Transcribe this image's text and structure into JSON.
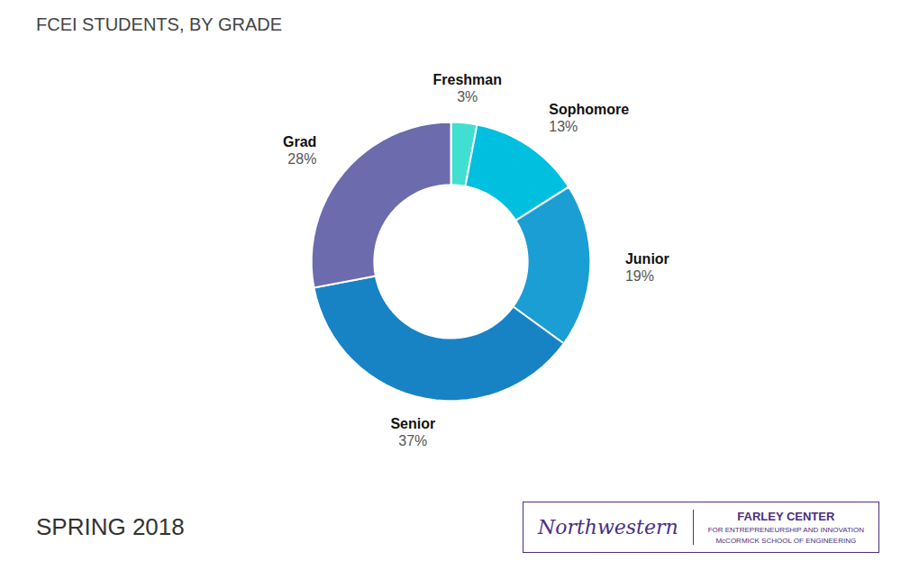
{
  "chart_data": {
    "type": "donut",
    "title": "FCEI STUDENTS, BY GRADE",
    "subtitle": "SPRING 2018",
    "categories": [
      "Freshman",
      "Sophomore",
      "Junior",
      "Senior",
      "Grad"
    ],
    "values": [
      3,
      13,
      19,
      37,
      28
    ],
    "value_labels": [
      "3%",
      "13%",
      "19%",
      "37%",
      "28%"
    ],
    "data_labels": true,
    "colors": [
      "#40E0D0",
      "#00BFDF",
      "#1B9ED4",
      "#1783C4",
      "#6B6BAE"
    ],
    "annotations": [
      {
        "text": "Northwestern",
        "color": "#4B2E83"
      },
      {
        "text": "FARLEY CENTER",
        "color": "#4B2E83"
      },
      {
        "text": "FOR ENTREPRENEURSHIP AND INNOVATION",
        "color": "#4B2E83"
      },
      {
        "text": "McCORMICK SCHOOL OF ENGINEERING",
        "color": "#4B2E83"
      }
    ]
  }
}
